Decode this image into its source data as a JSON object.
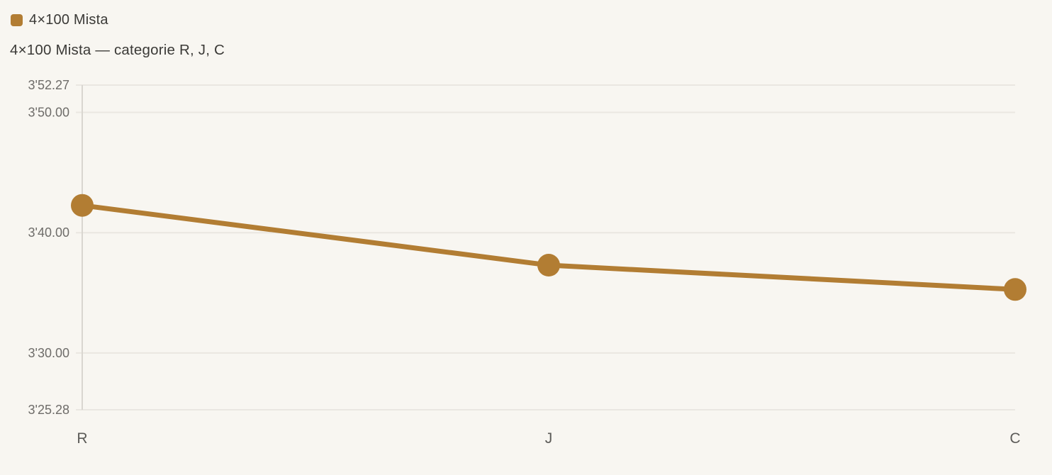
{
  "legend": {
    "label": "4×100 Mista"
  },
  "title": "4×100 Mista — categorie R, J, C",
  "colors": {
    "background": "#f8f6f1",
    "series": "#b27d33",
    "grid": "#eae7e1",
    "axis": "#d9d6d0",
    "title_text": "#3b3a37",
    "y_tick_text": "#6e6c69",
    "x_tick_text": "#5c5b58"
  },
  "chart_data": {
    "type": "line",
    "title": "4×100 Mista — categorie R, J, C",
    "xlabel": "",
    "ylabel": "",
    "categories": [
      "R",
      "J",
      "C"
    ],
    "series": [
      {
        "name": "4×100 Mista",
        "color": "#b27d33",
        "point_labels": [
          "3'42.27",
          "3'37.30",
          "3'35.28"
        ],
        "values_seconds": [
          222.27,
          217.3,
          215.28
        ]
      }
    ],
    "y_axis": {
      "direction": "time-ascending-up",
      "min_seconds": 205.28,
      "max_seconds": 232.27,
      "ticks": [
        {
          "label": "3'52.27",
          "seconds": 232.27
        },
        {
          "label": "3'50.00",
          "seconds": 230.0
        },
        {
          "label": "3'40.00",
          "seconds": 220.0
        },
        {
          "label": "3'30.00",
          "seconds": 210.0
        },
        {
          "label": "3'25.28",
          "seconds": 205.28
        }
      ]
    },
    "grid": "horizontal-only",
    "legend_position": "top-left",
    "marker_radius": 16,
    "line_width": 7
  }
}
